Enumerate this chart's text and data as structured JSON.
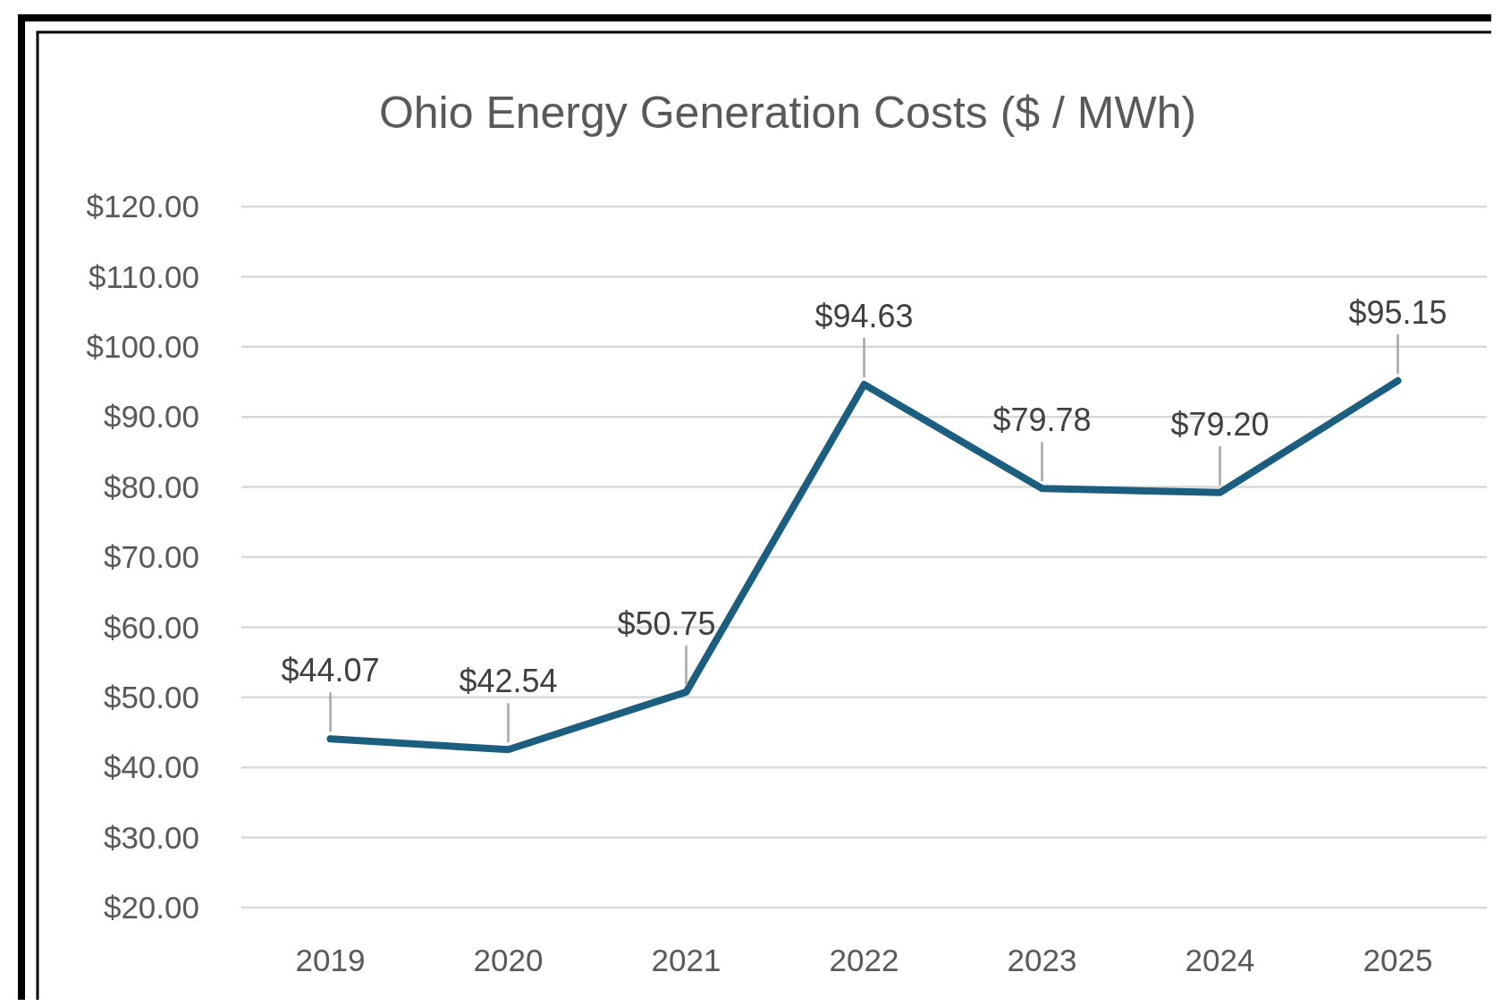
{
  "chart_data": {
    "type": "line",
    "title": "Ohio Energy Generation Costs ($ / MWh)",
    "categories": [
      "2019",
      "2020",
      "2021",
      "2022",
      "2023",
      "2024",
      "2025"
    ],
    "series": [
      {
        "color": "#1b5e80",
        "values": [
          44.07,
          42.54,
          50.75,
          94.63,
          79.78,
          79.2,
          95.15
        ],
        "value_labels": [
          "$44.07",
          "$42.54",
          "$50.75",
          "$94.63",
          "$79.78",
          "$79.20",
          "$95.15"
        ]
      }
    ],
    "ylim": [
      20,
      120
    ],
    "yticks": [
      {
        "value": 20,
        "label": "$20.00"
      },
      {
        "value": 30,
        "label": "$30.00"
      },
      {
        "value": 40,
        "label": "$40.00"
      },
      {
        "value": 50,
        "label": "$50.00"
      },
      {
        "value": 60,
        "label": "$60.00"
      },
      {
        "value": 70,
        "label": "$70.00"
      },
      {
        "value": 80,
        "label": "$80.00"
      },
      {
        "value": 90,
        "label": "$90.00"
      },
      {
        "value": 100,
        "label": "$100.00"
      },
      {
        "value": 110,
        "label": "$110.00"
      },
      {
        "value": 120,
        "label": "$120.00"
      }
    ],
    "grid": "y",
    "marker": "none",
    "line_style": "solid"
  }
}
